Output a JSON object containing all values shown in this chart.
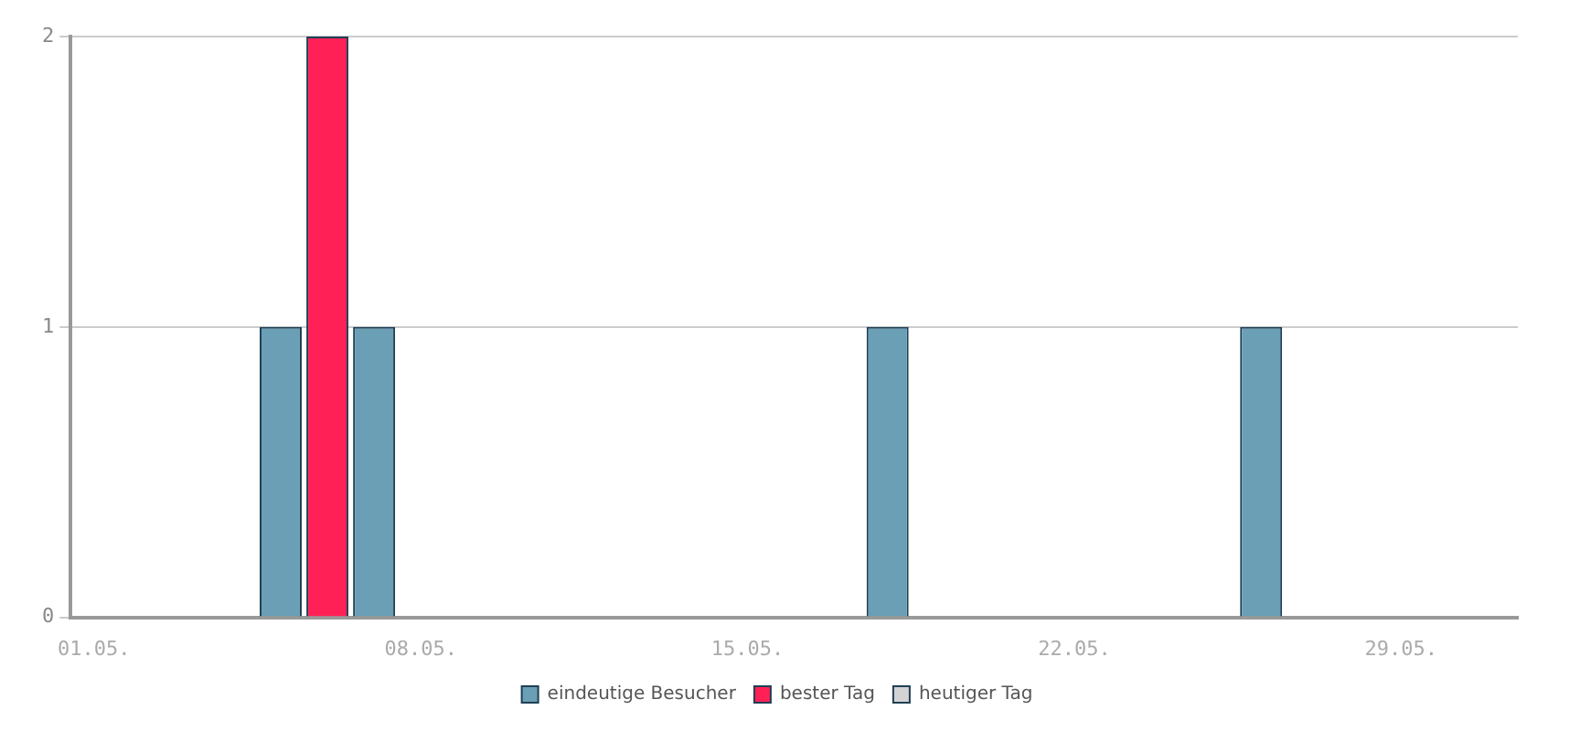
{
  "chart_data": {
    "type": "bar",
    "categories": [
      "01.05.",
      null,
      null,
      null,
      null,
      null,
      null,
      "08.05.",
      null,
      null,
      null,
      null,
      null,
      null,
      "15.05.",
      null,
      null,
      null,
      null,
      null,
      null,
      "22.05.",
      null,
      null,
      null,
      null,
      null,
      null,
      "29.05.",
      null,
      null
    ],
    "series": [
      {
        "name": "eindeutige Besucher",
        "color": "#6a9fb5",
        "values": [
          null,
          null,
          null,
          null,
          1,
          null,
          1,
          null,
          null,
          null,
          null,
          null,
          null,
          null,
          null,
          null,
          null,
          1,
          null,
          null,
          null,
          null,
          null,
          null,
          null,
          1,
          null,
          null,
          null,
          null,
          null
        ]
      },
      {
        "name": "bester Tag",
        "color": "#ff2156",
        "values": [
          null,
          null,
          null,
          null,
          null,
          2,
          null,
          null,
          null,
          null,
          null,
          null,
          null,
          null,
          null,
          null,
          null,
          null,
          null,
          null,
          null,
          null,
          null,
          null,
          null,
          null,
          null,
          null,
          null,
          null,
          null
        ]
      },
      {
        "name": "heutiger Tag",
        "color": "#d3d3d3",
        "values": [
          null,
          null,
          null,
          null,
          null,
          null,
          null,
          null,
          null,
          null,
          null,
          null,
          null,
          null,
          null,
          null,
          null,
          null,
          null,
          null,
          null,
          null,
          null,
          null,
          null,
          null,
          null,
          null,
          null,
          null,
          null
        ]
      }
    ],
    "ylim": [
      0,
      2
    ],
    "yticks": [
      0,
      1,
      2
    ],
    "grid": "y",
    "legend": "bottom"
  }
}
